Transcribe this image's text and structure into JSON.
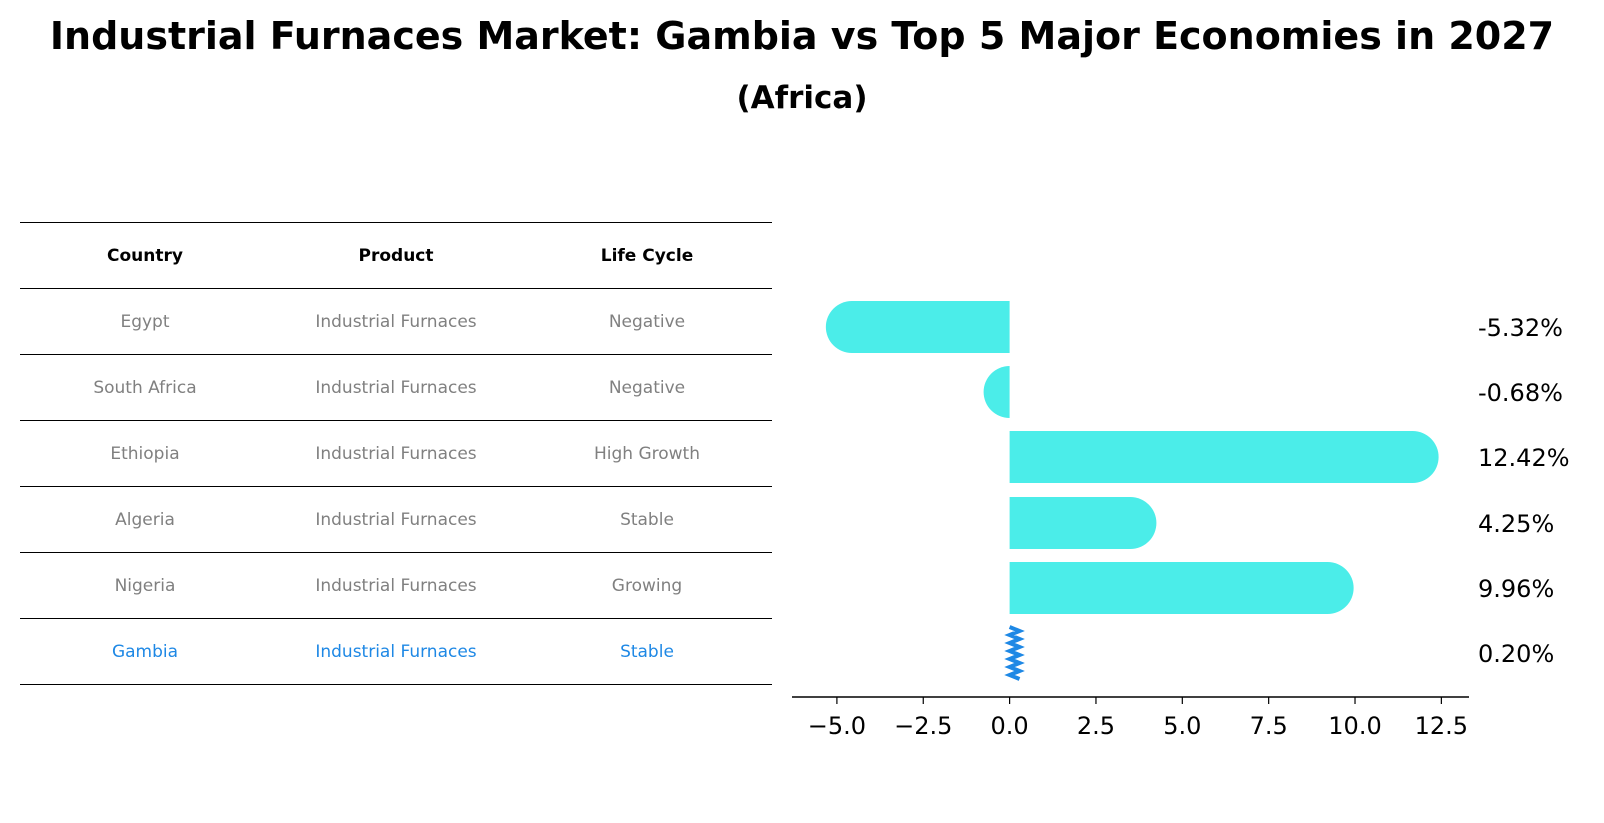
{
  "title": "Industrial Furnaces Market: Gambia vs Top 5 Major Economies in 2027",
  "subtitle": "(Africa)",
  "table": {
    "headers": [
      "Country",
      "Product",
      "Life Cycle"
    ],
    "rows": [
      {
        "country": "Egypt",
        "product": "Industrial Furnaces",
        "life_cycle": "Negative"
      },
      {
        "country": "South Africa",
        "product": "Industrial Furnaces",
        "life_cycle": "Negative"
      },
      {
        "country": "Ethiopia",
        "product": "Industrial Furnaces",
        "life_cycle": "High Growth"
      },
      {
        "country": "Algeria",
        "product": "Industrial Furnaces",
        "life_cycle": "Stable"
      },
      {
        "country": "Nigeria",
        "product": "Industrial Furnaces",
        "life_cycle": "Growing"
      },
      {
        "country": "Gambia",
        "product": "Industrial Furnaces",
        "life_cycle": "Stable"
      }
    ]
  },
  "colors": {
    "bar": "#4bede9",
    "highlight": "#1e88e5",
    "muted_text": "#808080"
  },
  "chart_data": {
    "type": "bar",
    "orientation": "horizontal",
    "categories": [
      "Egypt",
      "South Africa",
      "Ethiopia",
      "Algeria",
      "Nigeria",
      "Gambia"
    ],
    "values": [
      -5.32,
      -0.68,
      12.42,
      4.25,
      9.96,
      0.2
    ],
    "value_labels": [
      "-5.32%",
      "-0.68%",
      "12.42%",
      "4.25%",
      "9.96%",
      "0.20%"
    ],
    "xlim": [
      -6.3,
      13.3
    ],
    "xticks": [
      -5.0,
      -2.5,
      0.0,
      2.5,
      5.0,
      7.5,
      10.0,
      12.5
    ],
    "xtick_labels": [
      "−5.0",
      "−2.5",
      "0.0",
      "2.5",
      "5.0",
      "7.5",
      "10.0",
      "12.5"
    ],
    "highlight_category": "Gambia",
    "grid": false
  }
}
